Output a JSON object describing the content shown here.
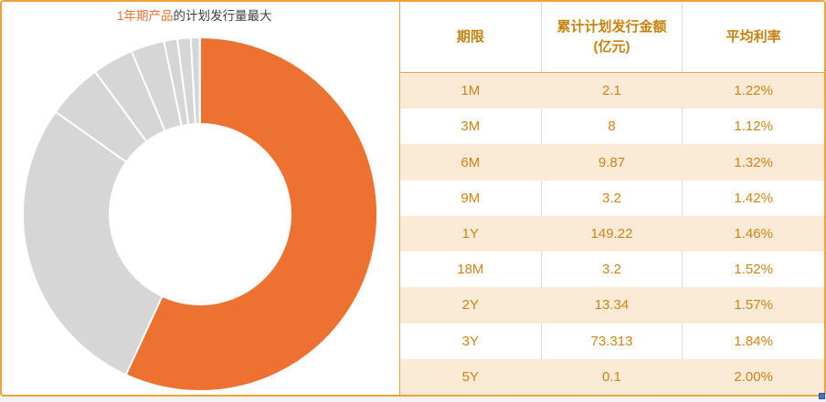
{
  "chart": {
    "title": {
      "highlight": "1年期产品",
      "rest": "的计划发行量最大"
    }
  },
  "chart_data": {
    "type": "pie",
    "donut": true,
    "title": "1年期产品的计划发行量最大",
    "unit": "亿元",
    "start_angle_deg": 0,
    "direction": "clockwise",
    "inner_radius_ratio": 0.51,
    "highlight_label": "1Y",
    "slices": [
      {
        "label": "1Y",
        "value": 149.22,
        "color": "#ED7231"
      },
      {
        "label": "3Y",
        "value": 73.313,
        "color": "#D6D6D6"
      },
      {
        "label": "2Y",
        "value": 13.34,
        "color": "#D6D6D6"
      },
      {
        "label": "6M",
        "value": 9.87,
        "color": "#D6D6D6"
      },
      {
        "label": "3M",
        "value": 8,
        "color": "#D6D6D6"
      },
      {
        "label": "9M",
        "value": 3.2,
        "color": "#D6D6D6"
      },
      {
        "label": "18M",
        "value": 3.2,
        "color": "#D6D6D6"
      },
      {
        "label": "1M",
        "value": 2.1,
        "color": "#D6D6D6"
      },
      {
        "label": "5Y",
        "value": 0.1,
        "color": "#D6D6D6"
      }
    ]
  },
  "table": {
    "headers": [
      "期限",
      "累计计划发行金额\n(亿元)",
      "平均利率"
    ],
    "rows": [
      [
        "1M",
        "2.1",
        "1.22%"
      ],
      [
        "3M",
        "8",
        "1.12%"
      ],
      [
        "6M",
        "9.87",
        "1.32%"
      ],
      [
        "9M",
        "3.2",
        "1.42%"
      ],
      [
        "1Y",
        "149.22",
        "1.46%"
      ],
      [
        "18M",
        "3.2",
        "1.52%"
      ],
      [
        "2Y",
        "13.34",
        "1.57%"
      ],
      [
        "3Y",
        "73.313",
        "1.84%"
      ],
      [
        "5Y",
        "0.1",
        "2.00%"
      ]
    ]
  },
  "colors": {
    "accent_orange": "#ED7231",
    "card_border_orange": "#F0A23A",
    "slice_gray": "#D6D6D6",
    "header_text": "#C8820F",
    "cell_text": "#D28414",
    "row_stripe": "#FBEAD6",
    "resize_handle_blue": "#4472C4"
  }
}
